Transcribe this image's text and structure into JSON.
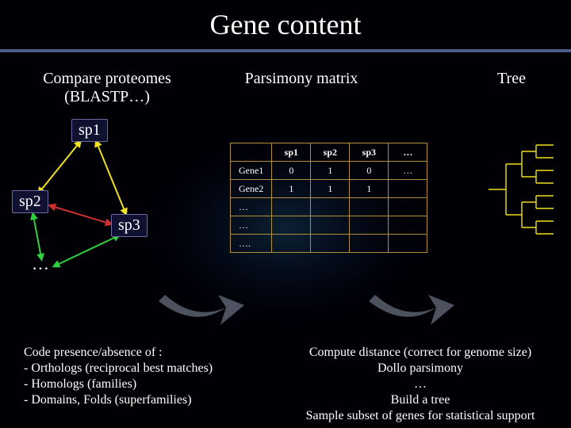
{
  "title": "Gene content",
  "hr_color": "#4a5a8a",
  "columns": {
    "c1": "Compare proteomes\n(BLASTP…)",
    "c2": "Parsimony matrix",
    "c3": "Tree"
  },
  "graph": {
    "nodes": [
      {
        "id": "sp1",
        "label": "sp1"
      },
      {
        "id": "sp2",
        "label": "sp2"
      },
      {
        "id": "sp3",
        "label": "sp3"
      }
    ],
    "ellipsis": "…",
    "edges": [
      {
        "from": "sp1",
        "to": "sp2",
        "color": "#f0e020"
      },
      {
        "from": "sp1",
        "to": "sp3",
        "color": "#f0e020"
      },
      {
        "from": "sp2",
        "to": "sp3",
        "color": "#d03030"
      },
      {
        "from": "sp2",
        "to": "ell",
        "color": "#30d040"
      },
      {
        "from": "sp3",
        "to": "ell",
        "color": "#30d040"
      }
    ],
    "node_box_bg": "#101030",
    "node_box_border": "#6a6aa0"
  },
  "matrix": {
    "type": "table",
    "col_headers": [
      "sp1",
      "sp2",
      "sp3",
      "…"
    ],
    "rows": [
      {
        "label": "Gene1",
        "cells": [
          "0",
          "1",
          "0",
          "…"
        ]
      },
      {
        "label": "Gene2",
        "cells": [
          "1",
          "1",
          "1",
          ""
        ]
      },
      {
        "label": "…",
        "cells": [
          "",
          "",
          "",
          ""
        ]
      },
      {
        "label": "…",
        "cells": [
          "",
          "",
          "",
          ""
        ]
      },
      {
        "label": "….",
        "cells": [
          "",
          "",
          "",
          ""
        ]
      }
    ],
    "border_color": "#b0903a",
    "text_color": "#ffffff",
    "font_size": 12
  },
  "tree": {
    "stroke_color": "#f0e020",
    "stroke_width": 1.4,
    "leaves": 8
  },
  "flow_arrows": {
    "fill": "#9aa4b8",
    "opacity": 0.5
  },
  "bottom_left": {
    "l1": "Code presence/absence of :",
    "l2": "- Orthologs (reciprocal best matches)",
    "l3": "- Homologs (families)",
    "l4": "- Domains, Folds (superfamilies)"
  },
  "bottom_right": {
    "l1": "Compute distance (correct for genome size)",
    "l2": "Dollo parsimony",
    "l3": "…",
    "l4": "Build a tree",
    "l5": "Sample subset of genes for statistical support"
  },
  "background_color": "#000005"
}
